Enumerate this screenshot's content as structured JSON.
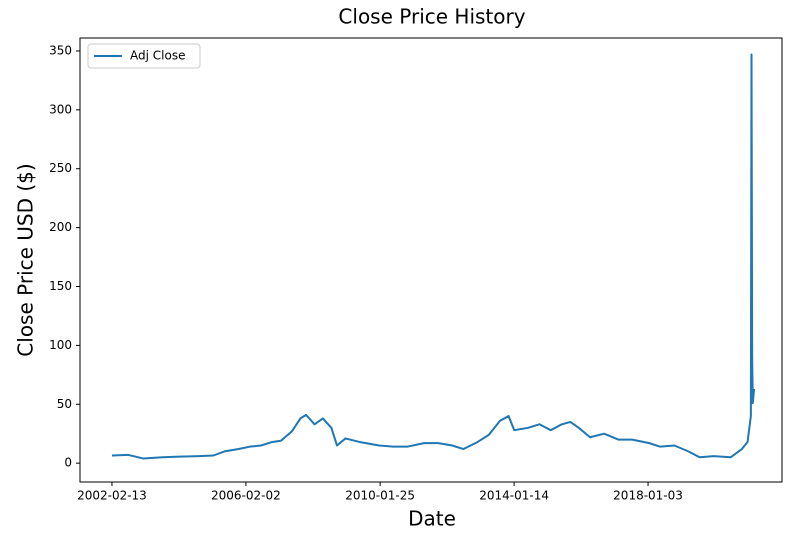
{
  "chart_data": {
    "type": "line",
    "title": "Close Price History",
    "x_label": "Date",
    "y_label": "Close Price USD ($)",
    "x": [
      "2002-02-13",
      "2002-08-10",
      "2003-01-15",
      "2003-08-15",
      "2004-02-15",
      "2004-09-15",
      "2005-02-15",
      "2005-06-15",
      "2005-11-15",
      "2006-03-15",
      "2006-07-15",
      "2006-11-15",
      "2007-02-15",
      "2007-06-15",
      "2007-09-15",
      "2007-11-15",
      "2008-02-15",
      "2008-05-15",
      "2008-08-15",
      "2008-10-15",
      "2009-01-15",
      "2009-06-15",
      "2010-01-15",
      "2010-06-15",
      "2010-11-15",
      "2011-05-15",
      "2011-10-15",
      "2012-03-15",
      "2012-07-15",
      "2012-12-15",
      "2013-04-15",
      "2013-08-15",
      "2013-11-15",
      "2014-01-15",
      "2014-06-15",
      "2014-10-15",
      "2015-02-15",
      "2015-06-15",
      "2015-09-15",
      "2015-12-15",
      "2016-04-15",
      "2016-09-15",
      "2017-02-15",
      "2017-07-15",
      "2018-01-15",
      "2018-05-15",
      "2018-10-15",
      "2019-03-15",
      "2019-07-15",
      "2019-12-15",
      "2020-06-15",
      "2020-10-15",
      "2020-12-15",
      "2021-01-20",
      "2021-01-27",
      "2021-02-03",
      "2021-02-10",
      "2021-02-24"
    ],
    "series": [
      {
        "name": "Adj Close",
        "color": "#1f77b4",
        "values": [
          6.5,
          7,
          4,
          5,
          5.5,
          6,
          6.5,
          10,
          12,
          14,
          15,
          18,
          19,
          27,
          38,
          41,
          33,
          38,
          30,
          15,
          21,
          18,
          15,
          14,
          14,
          17,
          17,
          15,
          12,
          18,
          24,
          36,
          40,
          28,
          30,
          33,
          28,
          33,
          35,
          30,
          22,
          25,
          20,
          20,
          17,
          14,
          15,
          10,
          5,
          6,
          5,
          12,
          18,
          40,
          347,
          90,
          51,
          63
        ]
      }
    ],
    "xlim": [
      "2001-03-04",
      "2021-12-23"
    ],
    "xticks": [
      "2002-02-13",
      "2006-02-02",
      "2010-01-25",
      "2014-01-14",
      "2018-01-03"
    ],
    "ylim": [
      -16,
      361
    ],
    "yticks": [
      0,
      50,
      100,
      150,
      200,
      250,
      300,
      350
    ],
    "legend": "upper left",
    "grid": false
  }
}
